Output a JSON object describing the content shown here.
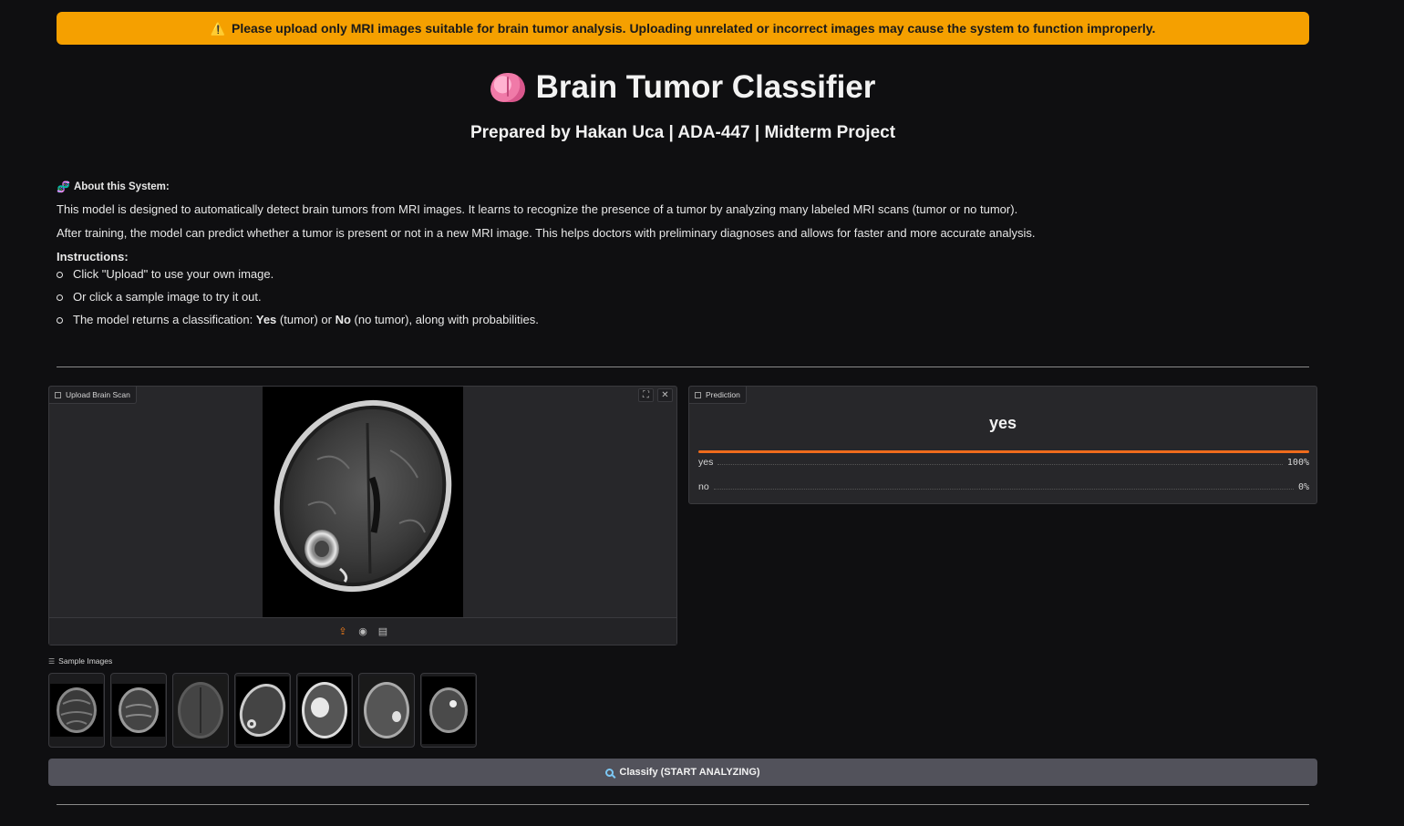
{
  "warning": {
    "icon": "warning-icon",
    "text": "Please upload only MRI images suitable for brain tumor analysis. Uploading unrelated or incorrect images may cause the system to function improperly."
  },
  "header": {
    "title": "Brain Tumor Classifier",
    "title_icon": "brain-icon",
    "subtitle": "Prepared by Hakan Uca | ADA-447 | Midterm Project"
  },
  "about": {
    "heading": "About this System:",
    "heading_icon": "dna-icon",
    "para1": "This model is designed to automatically detect brain tumors from MRI images. It learns to recognize the presence of a tumor by analyzing many labeled MRI scans (tumor or no tumor).",
    "para2": "After training, the model can predict whether a tumor is present or not in a new MRI image. This helps doctors with preliminary diagnoses and allows for faster and more accurate analysis.",
    "instructions_heading": "Instructions:",
    "instructions": [
      "Click \"Upload\" to use your own image.",
      "Or click a sample image to try it out."
    ],
    "inst3_prefix": "The model returns a classification: ",
    "inst3_yes": "Yes",
    "inst3_mid": " (tumor) or ",
    "inst3_no": "No",
    "inst3_suffix": " (no tumor), along with probabilities."
  },
  "upload": {
    "label": "Upload Brain Scan",
    "label_icon": "image-icon",
    "tools": [
      "fullscreen-icon",
      "close-icon"
    ],
    "actions": [
      "upload-icon",
      "webcam-icon",
      "clipboard-icon"
    ]
  },
  "prediction": {
    "label": "Prediction",
    "top_label": "yes",
    "confidences": [
      {
        "label": "yes",
        "value": "100%",
        "fraction": 1.0
      },
      {
        "label": "no",
        "value": "0%",
        "fraction": 0.0
      }
    ]
  },
  "samples": {
    "label": "Sample Images",
    "count": 7
  },
  "classify_button": {
    "label": "Classify (START ANALYZING)",
    "icon": "search-icon"
  },
  "colors": {
    "warning_bg": "#f5a000",
    "accent_orange": "#ef6b1c",
    "background": "#0f0f11",
    "panel": "#27272a",
    "button": "#52525b"
  }
}
